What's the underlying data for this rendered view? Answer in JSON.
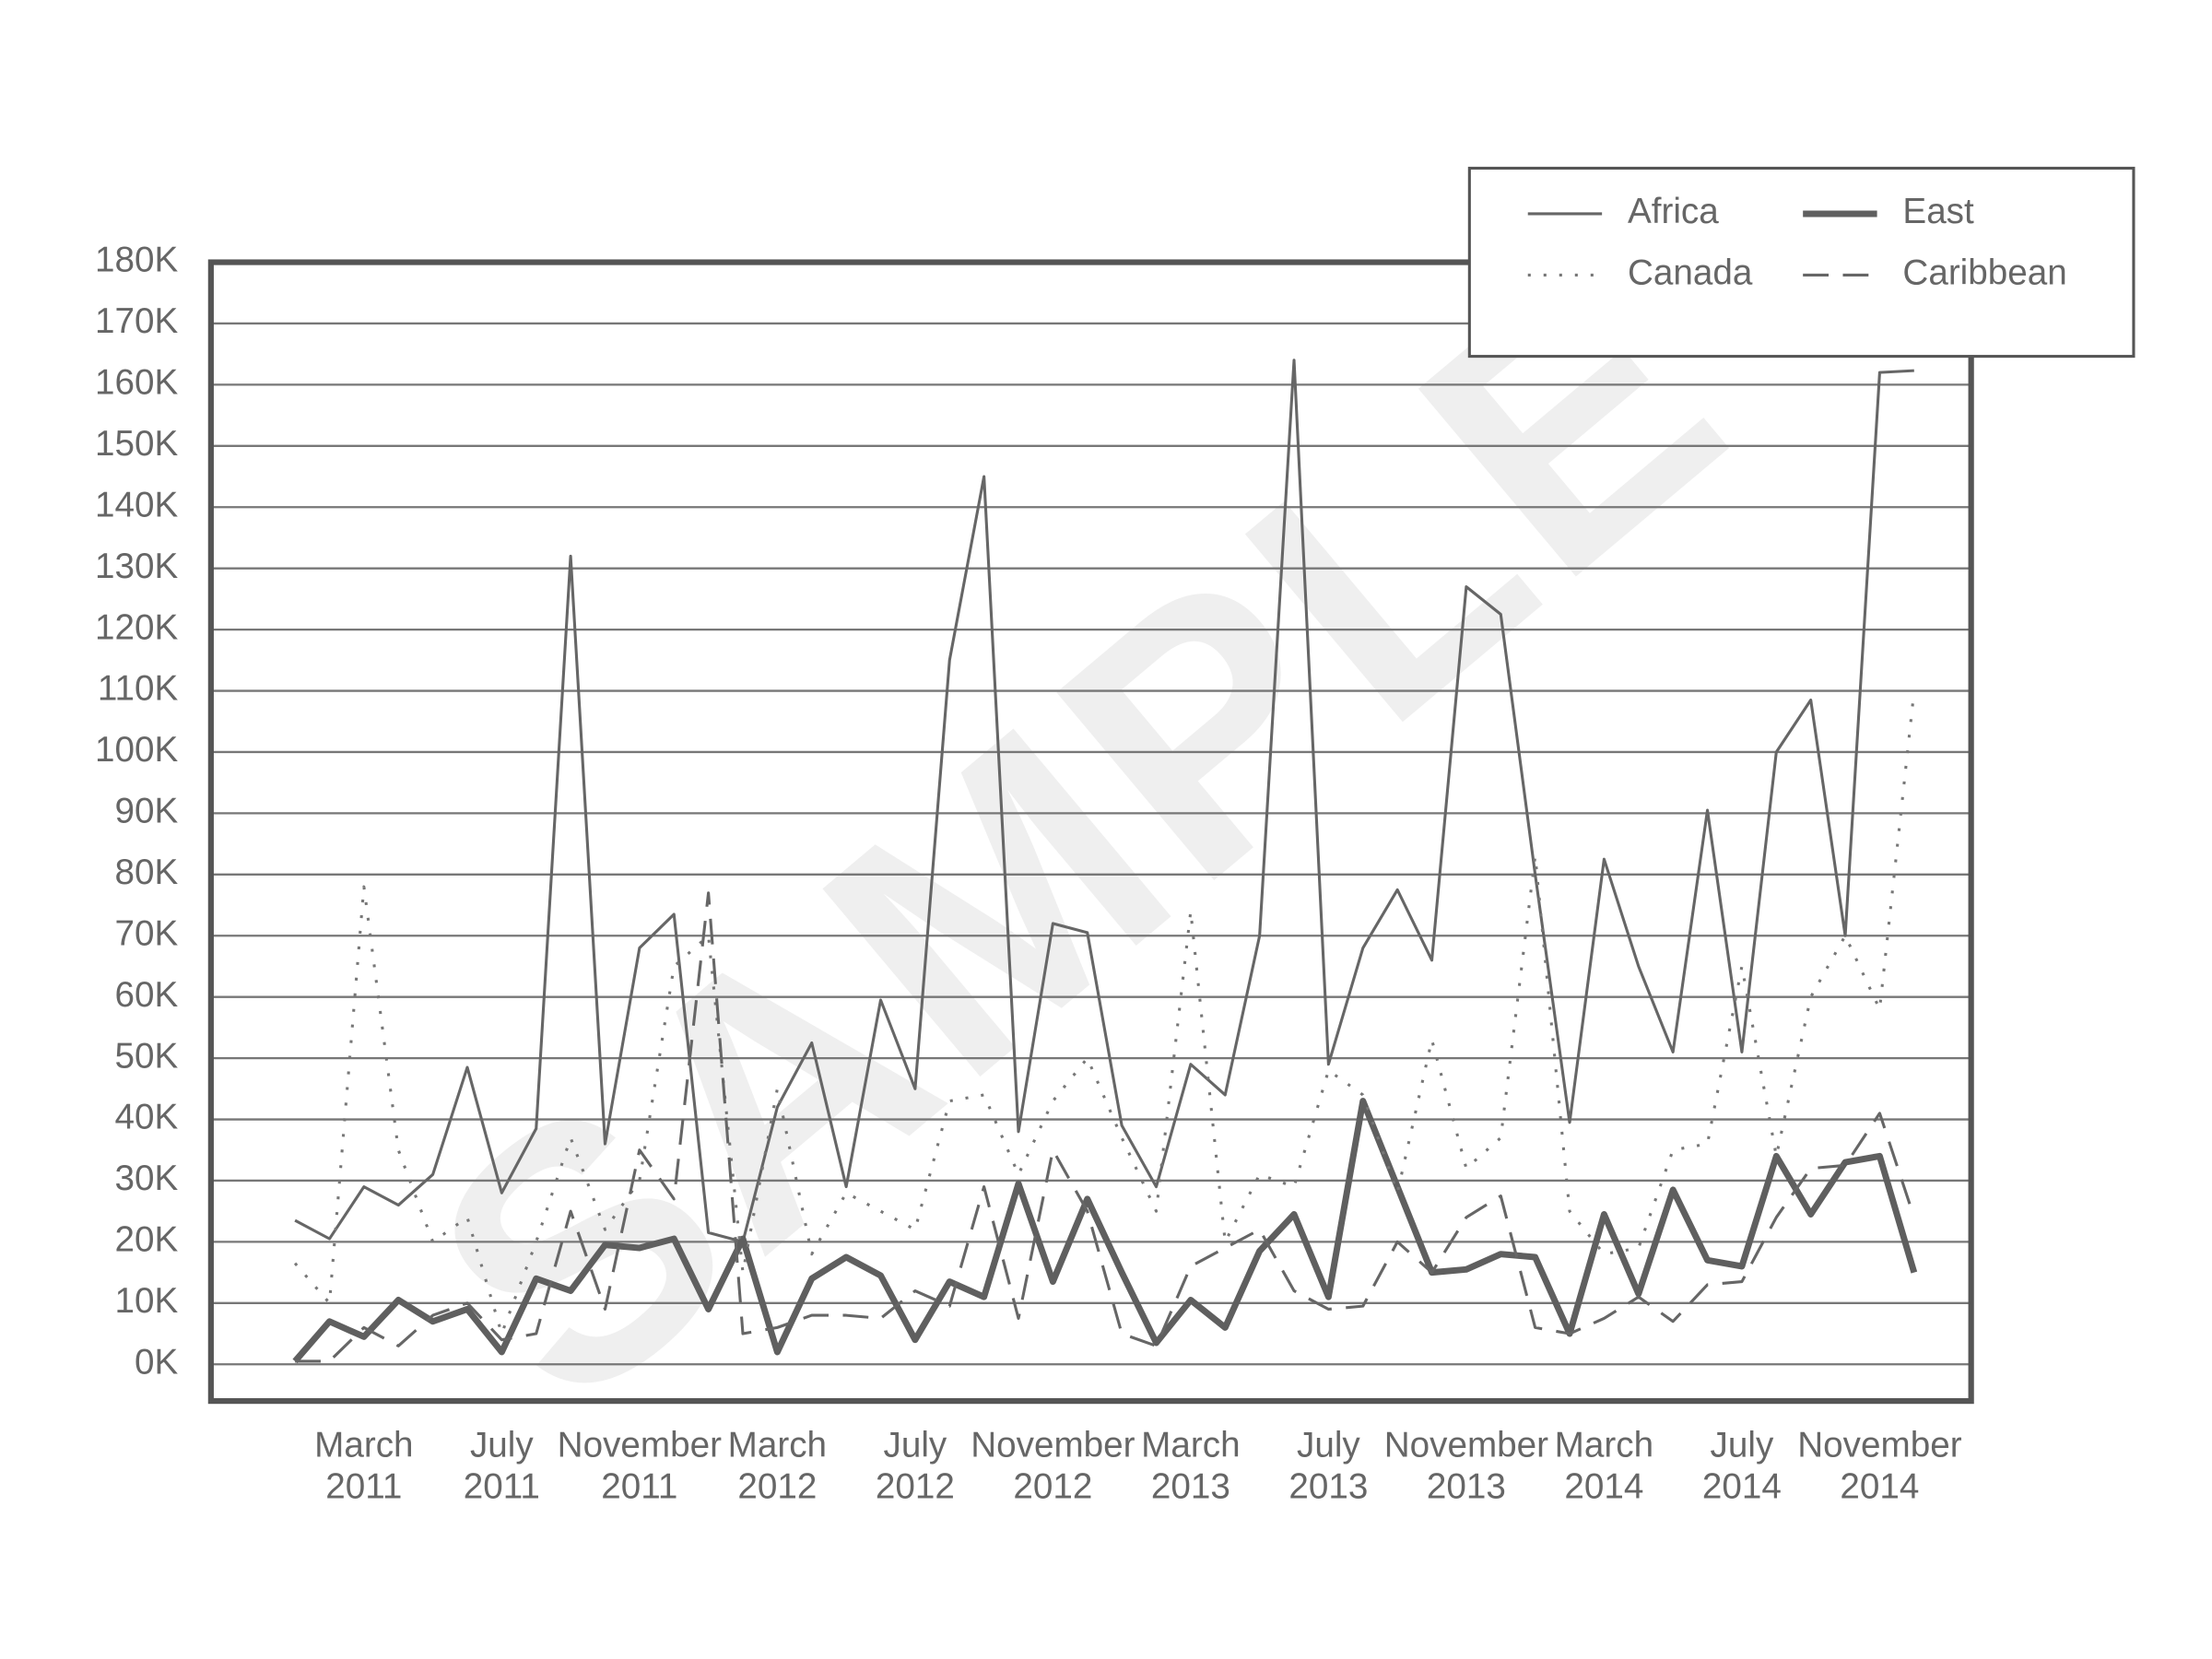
{
  "chart_data": {
    "type": "line",
    "watermark": "SAMPLE",
    "legend": "upper right",
    "grid": true,
    "categories": [
      null,
      null,
      "March 2011",
      null,
      null,
      null,
      "July 2011",
      null,
      null,
      null,
      "November 2011",
      null,
      null,
      null,
      "March 2012",
      null,
      null,
      null,
      "July 2012",
      null,
      null,
      null,
      "November 2012",
      null,
      null,
      null,
      "March 2013",
      null,
      null,
      null,
      "July 2013",
      null,
      null,
      null,
      "November 2013",
      null,
      null,
      null,
      "March 2014",
      null,
      null,
      null,
      "July 2014",
      null,
      null,
      null,
      "November 2014",
      null
    ],
    "ylim": [
      -6000,
      180000
    ],
    "yticks": [
      {
        "value": 0,
        "label": "0K"
      },
      {
        "value": 10000,
        "label": "10K"
      },
      {
        "value": 20000,
        "label": "20K"
      },
      {
        "value": 30000,
        "label": "30K"
      },
      {
        "value": 40000,
        "label": "40K"
      },
      {
        "value": 50000,
        "label": "50K"
      },
      {
        "value": 60000,
        "label": "60K"
      },
      {
        "value": 70000,
        "label": "70K"
      },
      {
        "value": 80000,
        "label": "80K"
      },
      {
        "value": 90000,
        "label": "90K"
      },
      {
        "value": 100000,
        "label": "100K"
      },
      {
        "value": 110000,
        "label": "110K"
      },
      {
        "value": 120000,
        "label": "120K"
      },
      {
        "value": 130000,
        "label": "130K"
      },
      {
        "value": 140000,
        "label": "140K"
      },
      {
        "value": 150000,
        "label": "150K"
      },
      {
        "value": 160000,
        "label": "160K"
      },
      {
        "value": 170000,
        "label": "170K"
      },
      {
        "value": 180000,
        "label": "180K"
      }
    ],
    "series": [
      {
        "name": "Africa",
        "color": "#666666",
        "linewidth": 2,
        "linestyle": "solid",
        "values": [
          23500,
          20500,
          29000,
          26000,
          31000,
          48500,
          28000,
          38500,
          132000,
          36000,
          68000,
          73500,
          21500,
          20000,
          42000,
          52500,
          29000,
          59500,
          45000,
          115000,
          145000,
          38000,
          72000,
          70500,
          39000,
          29000,
          49000,
          44000,
          70000,
          164000,
          49000,
          68000,
          77500,
          66000,
          127000,
          122500,
          80000,
          39500,
          82500,
          65000,
          51000,
          90500,
          51000,
          100000,
          108500,
          70000,
          162000,
          162300
        ]
      },
      {
        "name": "East",
        "color": "#5f5f5f",
        "linewidth": 4.5,
        "linestyle": "solid",
        "values": [
          500,
          7000,
          4500,
          10500,
          7000,
          9000,
          2000,
          14000,
          12000,
          19500,
          19000,
          20500,
          9000,
          20500,
          2000,
          14000,
          17500,
          14500,
          4000,
          13500,
          11000,
          29500,
          13500,
          27000,
          15000,
          3500,
          10500,
          6000,
          18500,
          24500,
          11000,
          43000,
          29000,
          15000,
          15500,
          18000,
          17500,
          5000,
          24500,
          11500,
          28500,
          17000,
          16000,
          34000,
          24500,
          33000,
          34000,
          15000
        ]
      },
      {
        "name": "Canada",
        "color": "#777777",
        "linewidth": 2,
        "linestyle": "dotted",
        "values": [
          16500,
          10000,
          78000,
          35000,
          20000,
          24000,
          5000,
          20000,
          37000,
          22000,
          30000,
          65000,
          70000,
          15000,
          45000,
          18000,
          28000,
          25000,
          22000,
          43000,
          44000,
          31000,
          43000,
          50000,
          37000,
          25000,
          74000,
          20000,
          31000,
          29000,
          48000,
          44000,
          28000,
          53000,
          32000,
          37000,
          83000,
          25000,
          18000,
          19000,
          35000,
          36000,
          65000,
          34000,
          60000,
          70000,
          58000,
          110000
        ]
      },
      {
        "name": "Caribbean",
        "color": "#666666",
        "linewidth": 2,
        "linestyle": "dashed",
        "values": [
          500,
          500,
          6000,
          3000,
          8000,
          10000,
          4000,
          5000,
          25000,
          9000,
          35000,
          27000,
          77000,
          5000,
          6000,
          8000,
          8000,
          7500,
          12000,
          9500,
          29000,
          7500,
          35000,
          25000,
          5000,
          3000,
          16000,
          19000,
          22000,
          12000,
          9000,
          9500,
          20000,
          15000,
          24000,
          27500,
          6000,
          5000,
          7500,
          11000,
          7000,
          13000,
          13500,
          24000,
          32000,
          32500,
          41000,
          24000
        ]
      }
    ]
  }
}
